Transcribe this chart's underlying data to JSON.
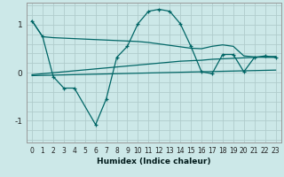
{
  "background_color": "#cce8e8",
  "grid_color": "#b0cccc",
  "line_color": "#006666",
  "xlabel": "Humidex (Indice chaleur)",
  "xlim": [
    -0.5,
    23.5
  ],
  "ylim": [
    -1.45,
    1.45
  ],
  "yticks": [
    -1,
    0,
    1
  ],
  "xticks": [
    0,
    1,
    2,
    3,
    4,
    5,
    6,
    7,
    8,
    9,
    10,
    11,
    12,
    13,
    14,
    15,
    16,
    17,
    18,
    19,
    20,
    21,
    22,
    23
  ],
  "s1_x": [
    0,
    1,
    2,
    3,
    4,
    5,
    6,
    7,
    8,
    9,
    10,
    11,
    12,
    13,
    14,
    15,
    16,
    17,
    18,
    19,
    20,
    21,
    22,
    23
  ],
  "s1_y": [
    1.08,
    0.75,
    0.73,
    0.72,
    0.71,
    0.7,
    0.69,
    0.68,
    0.67,
    0.66,
    0.65,
    0.63,
    0.6,
    0.57,
    0.54,
    0.51,
    0.5,
    0.55,
    0.58,
    0.55,
    0.35,
    0.33,
    0.32,
    0.32
  ],
  "s2_x": [
    0,
    1,
    2,
    3,
    4,
    5,
    6,
    7,
    8,
    9,
    10,
    11,
    12,
    13,
    14,
    15,
    16,
    17,
    18,
    19,
    20,
    21,
    22,
    23
  ],
  "s2_y": [
    -0.04,
    -0.02,
    0.0,
    0.02,
    0.04,
    0.06,
    0.08,
    0.1,
    0.12,
    0.14,
    0.16,
    0.18,
    0.2,
    0.22,
    0.24,
    0.25,
    0.26,
    0.28,
    0.29,
    0.3,
    0.31,
    0.32,
    0.33,
    0.34
  ],
  "s3_x": [
    0,
    1,
    2,
    3,
    4,
    5,
    6,
    7,
    8,
    9,
    10,
    11,
    12,
    13,
    14,
    15,
    16,
    17,
    18,
    19,
    20,
    21,
    22,
    23
  ],
  "s3_y": [
    -0.06,
    -0.055,
    -0.05,
    -0.045,
    -0.04,
    -0.035,
    -0.03,
    -0.025,
    -0.02,
    -0.015,
    -0.01,
    -0.005,
    0.0,
    0.005,
    0.01,
    0.015,
    0.02,
    0.025,
    0.03,
    0.035,
    0.04,
    0.045,
    0.05,
    0.055
  ],
  "s4_x": [
    0,
    1,
    2,
    3,
    4,
    6,
    7,
    8,
    9,
    10,
    11,
    12,
    13,
    14,
    15,
    16,
    17,
    18,
    19,
    20,
    21,
    22,
    23
  ],
  "s4_y": [
    1.08,
    0.75,
    -0.08,
    -0.32,
    -0.32,
    -1.08,
    -0.55,
    0.32,
    0.55,
    1.02,
    1.28,
    1.32,
    1.28,
    1.02,
    0.55,
    0.02,
    -0.02,
    0.38,
    0.38,
    0.02,
    0.32,
    0.35,
    0.32
  ]
}
